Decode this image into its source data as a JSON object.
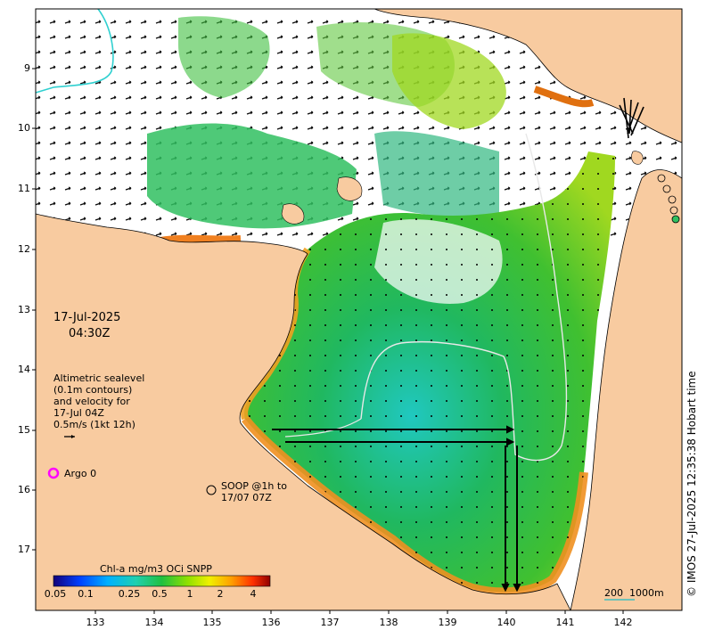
{
  "map": {
    "datetime_line1": "17-Jul-2025",
    "datetime_line2": "04:30Z",
    "altimetry_lines": [
      "Altimetric sealevel",
      "(0.1m contours)",
      "and velocity for",
      "17-Jul 04Z",
      "0.5m/s (1kt 12h)"
    ],
    "argo_label": "Argo 0",
    "soop_lines": [
      "SOOP @1h to",
      "17/07 07Z"
    ],
    "scale_label_1": "200",
    "scale_label_2": "1000m",
    "credit": "© IMOS 27-Jul-2025 12:35:38 Hobart time",
    "colorbar_title": "Chl-a mg/m3 OCi SNPP",
    "colorbar_ticks": [
      "0.05",
      "0.1",
      "0.25",
      "0.5",
      "1",
      "2",
      "4"
    ],
    "lat_ticks": [
      "9",
      "10",
      "11",
      "12",
      "13",
      "14",
      "15",
      "16",
      "17"
    ],
    "lon_ticks": [
      "133",
      "134",
      "135",
      "136",
      "137",
      "138",
      "139",
      "140",
      "141",
      "142"
    ],
    "colors": {
      "land": "#f8cba0",
      "ocean_nodata": "#ffffff",
      "argo": "#ff00ff",
      "contour": "#e8e8e8",
      "scale": "#40c0c0"
    }
  }
}
